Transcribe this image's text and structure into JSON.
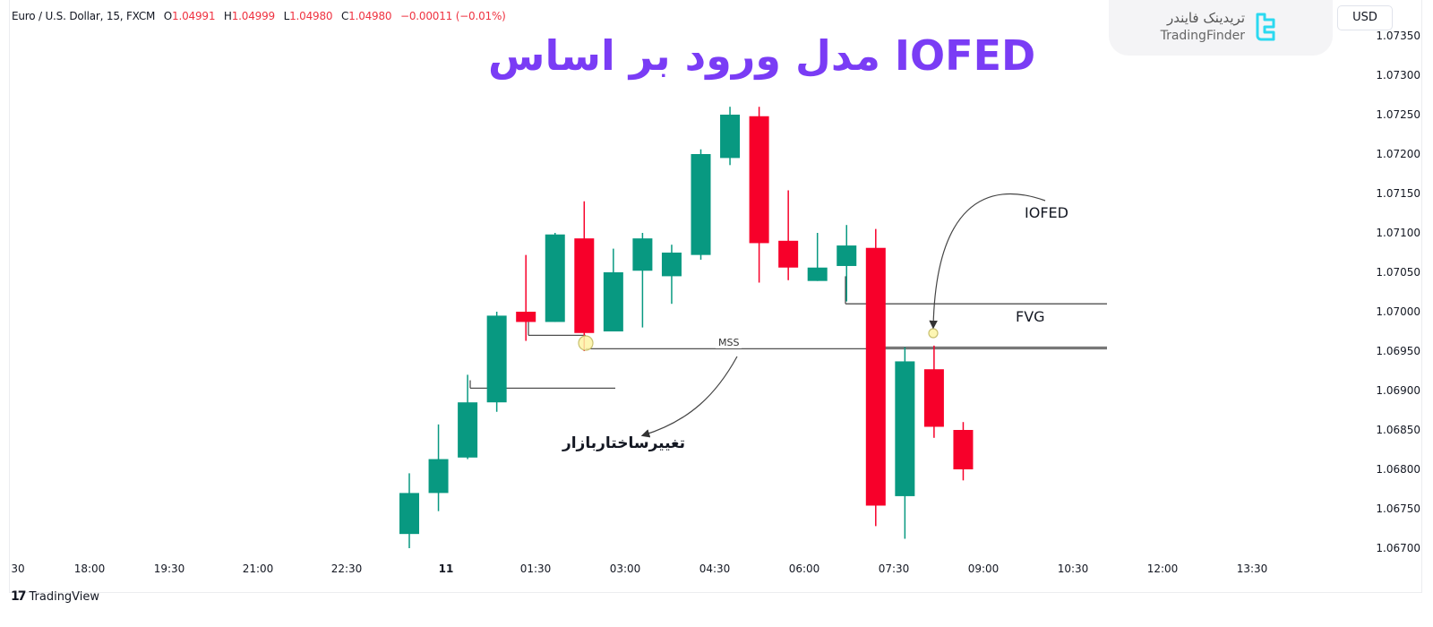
{
  "legend": {
    "symbol": "Euro / U.S. Dollar, 15, FXCM",
    "open_key": "O",
    "open": "1.04991",
    "high_key": "H",
    "high": "1.04999",
    "low_key": "L",
    "low": "1.04980",
    "close_key": "C",
    "close": "1.04980",
    "change": "−0.00011 (−0.01%)"
  },
  "headline": "مدل ورود بر اساس IOFED",
  "brand": {
    "name_fa": "تریدینک فایندر",
    "name_en": "TradingFinder",
    "logo_color": "#2bd9f0"
  },
  "currency_button": "USD",
  "footer": {
    "tradingview": "TradingView",
    "tv_mark": "17"
  },
  "annotations": {
    "iofed": "IOFED",
    "fvg": "FVG",
    "mss": "MSS",
    "mss_fa": "تغییرساختاربازار"
  },
  "colors": {
    "up": "#089981",
    "down": "#f7002a",
    "headline": "#7a3cf5",
    "level_line": "#505050",
    "marker_fill": "#fdf5a6",
    "marker_stroke": "#c9c070"
  },
  "chart_data": {
    "type": "candlestick",
    "title": "مدل ورود بر اساس IOFED",
    "symbol": "EURUSD 15m FXCM",
    "xlabel": "",
    "ylabel": "USD",
    "ylim": [
      1.0663,
      1.0738
    ],
    "y_ticks": [
      "1.07350",
      "1.07300",
      "1.07250",
      "1.07200",
      "1.07150",
      "1.07100",
      "1.07050",
      "1.07000",
      "1.06950",
      "1.06900",
      "1.06850",
      "1.06800",
      "1.06750",
      "1.06700"
    ],
    "x_ticks": [
      "30",
      "18:00",
      "19:30",
      "21:00",
      "22:30",
      "11",
      "01:30",
      "03:00",
      "04:30",
      "06:00",
      "07:30",
      "09:00",
      "10:30",
      "12:00",
      "13:30"
    ],
    "grid": false,
    "candles": [
      {
        "o": 1.06718,
        "h": 1.06795,
        "l": 1.067,
        "c": 1.0677
      },
      {
        "o": 1.0677,
        "h": 1.06857,
        "l": 1.06747,
        "c": 1.06813
      },
      {
        "o": 1.06815,
        "h": 1.0692,
        "l": 1.06813,
        "c": 1.06885
      },
      {
        "o": 1.06885,
        "h": 1.07,
        "l": 1.06873,
        "c": 1.06995
      },
      {
        "o": 1.07,
        "h": 1.07072,
        "l": 1.06963,
        "c": 1.06987
      },
      {
        "o": 1.06987,
        "h": 1.071,
        "l": 1.06987,
        "c": 1.07098
      },
      {
        "o": 1.07093,
        "h": 1.0714,
        "l": 1.0695,
        "c": 1.06973
      },
      {
        "o": 1.06975,
        "h": 1.0708,
        "l": 1.06975,
        "c": 1.0705
      },
      {
        "o": 1.07052,
        "h": 1.071,
        "l": 1.0698,
        "c": 1.07093
      },
      {
        "o": 1.07045,
        "h": 1.07085,
        "l": 1.0701,
        "c": 1.07075
      },
      {
        "o": 1.07072,
        "h": 1.07206,
        "l": 1.07066,
        "c": 1.072
      },
      {
        "o": 1.07195,
        "h": 1.0726,
        "l": 1.07186,
        "c": 1.0725
      },
      {
        "o": 1.07248,
        "h": 1.0726,
        "l": 1.07037,
        "c": 1.07087
      },
      {
        "o": 1.0709,
        "h": 1.07154,
        "l": 1.0704,
        "c": 1.07056
      },
      {
        "o": 1.07039,
        "h": 1.071,
        "l": 1.07039,
        "c": 1.07056
      },
      {
        "o": 1.07058,
        "h": 1.0711,
        "l": 1.07013,
        "c": 1.07084
      },
      {
        "o": 1.07081,
        "h": 1.07105,
        "l": 1.06728,
        "c": 1.06754
      },
      {
        "o": 1.06766,
        "h": 1.06955,
        "l": 1.06712,
        "c": 1.06937
      },
      {
        "o": 1.06927,
        "h": 1.06957,
        "l": 1.0684,
        "c": 1.06854
      },
      {
        "o": 1.0685,
        "h": 1.0686,
        "l": 1.06786,
        "c": 1.068
      }
    ],
    "levels": [
      {
        "name": "swing-low-line",
        "price": 1.06903,
        "x_from": 525,
        "x_to": 687
      },
      {
        "name": "prev-low-line",
        "price": 1.0697,
        "x_from": 590,
        "x_to": 654
      },
      {
        "name": "MSS",
        "price": 1.06953,
        "x_from": 654,
        "x_to": 1236
      },
      {
        "name": "FVG-top",
        "price": 1.0701,
        "x_from": 944,
        "x_to": 1236
      },
      {
        "name": "FVG-bottom",
        "price": 1.06955,
        "x_from": 977,
        "x_to": 1236
      }
    ],
    "annotations": [
      "IOFED",
      "FVG",
      "MSS",
      "تغییرساختاربازار"
    ]
  }
}
